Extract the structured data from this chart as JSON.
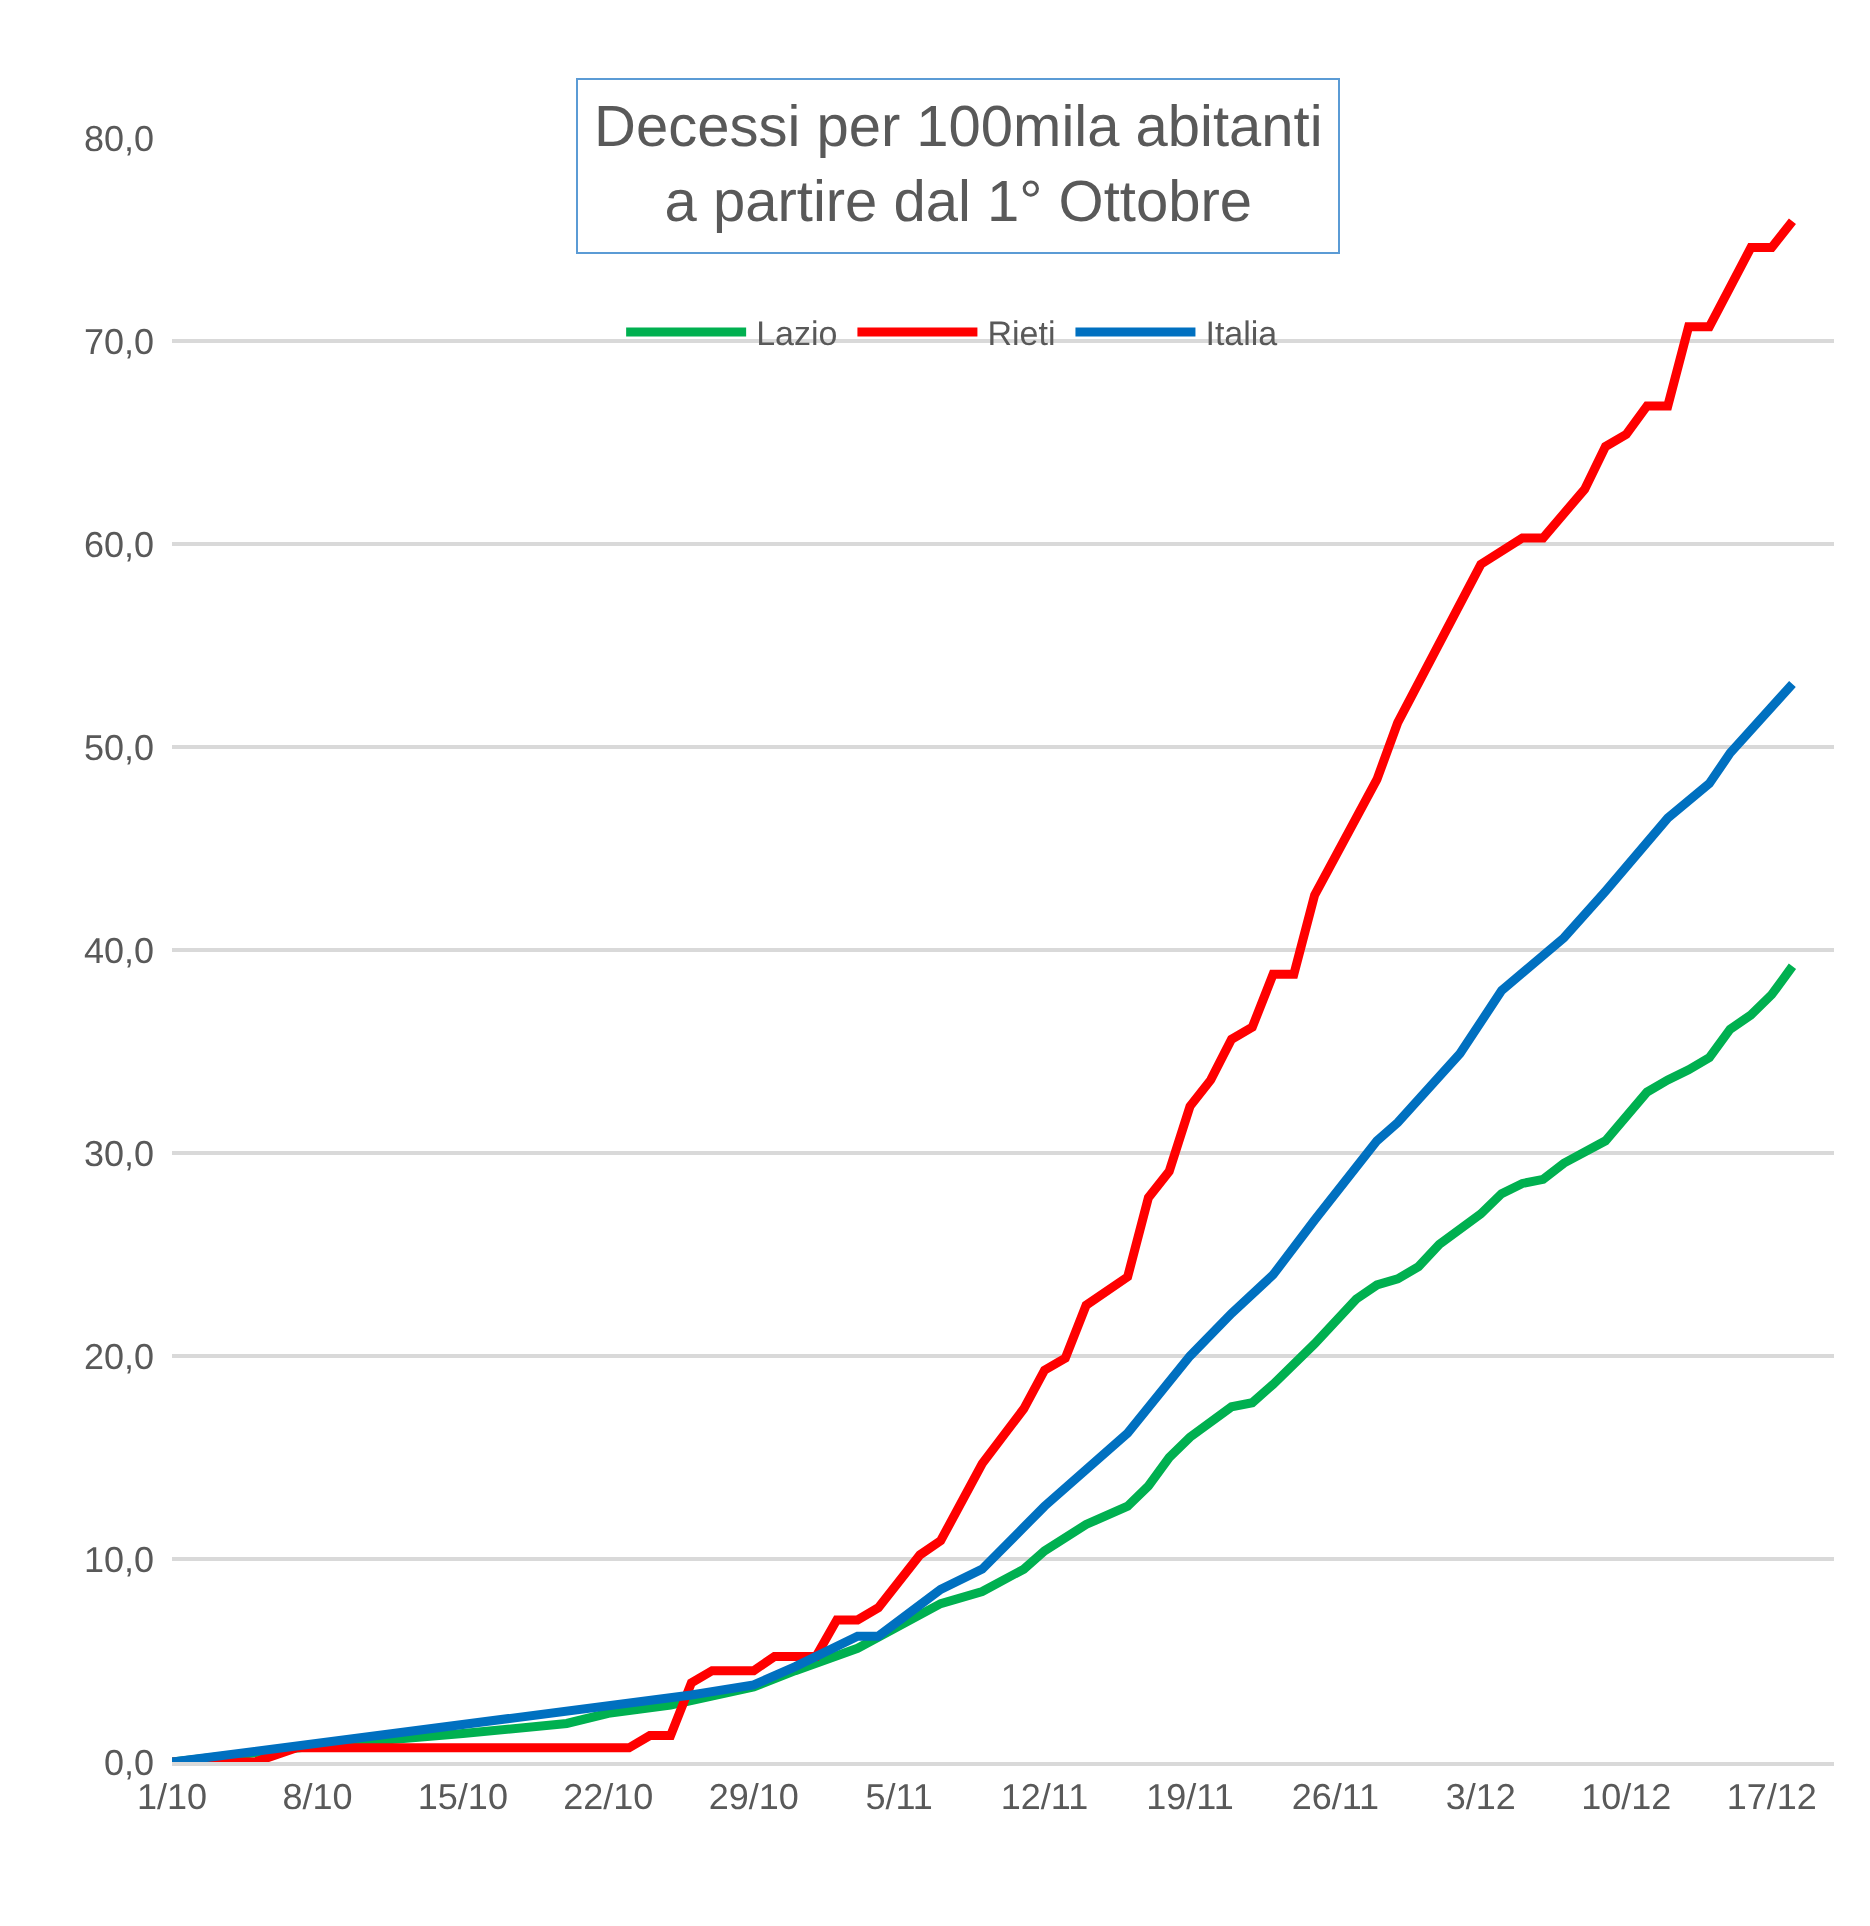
{
  "chart_data": {
    "type": "line",
    "title": "Decessi per 100mila abitanti\na partire dal 1° Ottobre",
    "xlim": [
      "--10-01",
      "--12-20"
    ],
    "xticks": [
      {
        "value": "--10-01",
        "label": "1/10"
      },
      {
        "value": "--10-08",
        "label": "8/10"
      },
      {
        "value": "--10-15",
        "label": "15/10"
      },
      {
        "value": "--10-22",
        "label": "22/10"
      },
      {
        "value": "--10-29",
        "label": "29/10"
      },
      {
        "value": "--11-05",
        "label": "5/11"
      },
      {
        "value": "--11-12",
        "label": "12/11"
      },
      {
        "value": "--11-19",
        "label": "19/11"
      },
      {
        "value": "--11-26",
        "label": "26/11"
      },
      {
        "value": "--12-03",
        "label": "3/12"
      },
      {
        "value": "--12-10",
        "label": "10/12"
      },
      {
        "value": "--12-17",
        "label": "17/12"
      }
    ],
    "ylim": [
      0,
      80
    ],
    "yticks": [
      {
        "value": 0,
        "label": "0,0"
      },
      {
        "value": 10,
        "label": "10,0"
      },
      {
        "value": 20,
        "label": "20,0"
      },
      {
        "value": 30,
        "label": "30,0"
      },
      {
        "value": 40,
        "label": "40,0"
      },
      {
        "value": 50,
        "label": "50,0"
      },
      {
        "value": 60,
        "label": "60,0"
      },
      {
        "value": 70,
        "label": "70,0"
      },
      {
        "value": 80,
        "label": "80,0"
      }
    ],
    "grid": "y",
    "legend": "top",
    "marker": "none",
    "line_style": "solid",
    "series": [
      {
        "name": "Lazio",
        "color": "#00b050",
        "x": [
          "--10-01",
          "--10-08",
          "--10-15",
          "--10-20",
          "--10-22",
          "--10-25",
          "--10-29",
          "--10-31",
          "--11-03",
          "--11-07",
          "--11-09",
          "--11-11",
          "--11-12",
          "--11-14",
          "--11-16",
          "--11-17",
          "--11-18",
          "--11-19",
          "--11-21",
          "--11-22",
          "--11-23",
          "--11-25",
          "--11-27",
          "--11-28",
          "--11-29",
          "--11-30",
          "--12-01",
          "--12-03",
          "--12-04",
          "--12-05",
          "--12-06",
          "--12-07",
          "--12-09",
          "--12-11",
          "--12-12",
          "--12-13",
          "--12-14",
          "--12-15",
          "--12-16",
          "--12-17",
          "--12-18"
        ],
        "values": [
          0,
          0.8,
          1.4,
          1.9,
          2.4,
          2.8,
          3.7,
          4.5,
          5.6,
          7.8,
          8.4,
          9.5,
          10.4,
          11.7,
          12.6,
          13.6,
          15.0,
          16.0,
          17.5,
          17.7,
          18.6,
          20.6,
          22.8,
          23.5,
          23.8,
          24.4,
          25.5,
          27.0,
          28.0,
          28.5,
          28.7,
          29.5,
          30.6,
          33.0,
          33.6,
          34.1,
          34.7,
          36.1,
          36.8,
          37.8,
          39.2
        ]
      },
      {
        "name": "Rieti",
        "color": "#ff0000",
        "x": [
          "--10-01",
          "--10-05",
          "--10-07",
          "--10-23",
          "--10-24",
          "--10-25",
          "--10-26",
          "--10-27",
          "--10-29",
          "--10-30",
          "--11-01",
          "--11-02",
          "--11-03",
          "--11-04",
          "--11-06",
          "--11-07",
          "--11-09",
          "--11-11",
          "--11-12",
          "--11-13",
          "--11-14",
          "--11-16",
          "--11-17",
          "--11-18",
          "--11-19",
          "--11-20",
          "--11-21",
          "--11-22",
          "--11-23",
          "--11-24",
          "--11-25",
          "--11-28",
          "--11-29",
          "--12-03",
          "--12-05",
          "--12-06",
          "--12-08",
          "--12-09",
          "--12-10",
          "--12-11",
          "--12-12",
          "--12-13",
          "--12-14",
          "--12-16",
          "--12-17",
          "--12-18"
        ],
        "values": [
          0,
          0,
          0.7,
          0.7,
          1.3,
          1.3,
          3.9,
          4.5,
          4.5,
          5.2,
          5.2,
          7.0,
          7.0,
          7.6,
          10.2,
          10.9,
          14.7,
          17.4,
          19.3,
          19.9,
          22.5,
          23.9,
          27.8,
          29.1,
          32.3,
          33.6,
          35.6,
          36.2,
          38.8,
          38.8,
          42.7,
          48.4,
          51.2,
          59.0,
          60.3,
          60.3,
          62.7,
          64.8,
          65.4,
          66.8,
          66.8,
          70.7,
          70.7,
          74.6,
          74.6,
          75.9
        ]
      },
      {
        "name": "Italia",
        "color": "#0070c0",
        "x": [
          "--10-01",
          "--10-26",
          "--10-29",
          "--10-31",
          "--11-03",
          "--11-04",
          "--11-07",
          "--11-09",
          "--11-12",
          "--11-16",
          "--11-19",
          "--11-21",
          "--11-23",
          "--11-25",
          "--11-28",
          "--11-29",
          "--12-02",
          "--12-04",
          "--12-07",
          "--12-09",
          "--12-12",
          "--12-14",
          "--12-15",
          "--12-18"
        ],
        "values": [
          0,
          3.3,
          3.8,
          4.7,
          6.2,
          6.2,
          8.5,
          9.5,
          12.6,
          16.2,
          20.0,
          22.1,
          24.0,
          26.7,
          30.6,
          31.5,
          34.9,
          38.0,
          40.6,
          42.9,
          46.5,
          48.2,
          49.7,
          53.1
        ]
      }
    ]
  }
}
